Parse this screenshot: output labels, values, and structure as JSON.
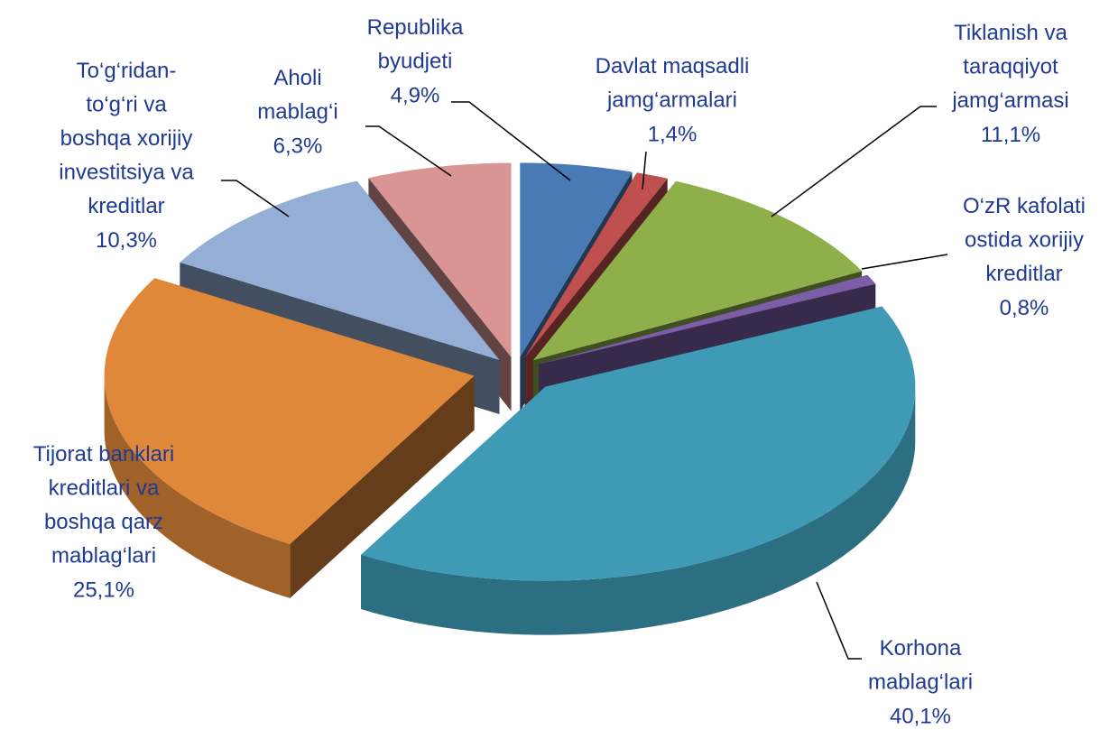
{
  "chart_data": {
    "type": "pie",
    "categories": [
      "Republika\nbyudjeti",
      "Davlat maqsadli\njamg‘armalari",
      "Tiklanish va\ntaraqqiyot\njamg‘armasi",
      "O‘zR kafolati\nostida xorijiy\nkreditlar",
      "Korhona\nmablag‘lari",
      "Tijorat banklari\nkreditlari va\nboshqa qarz\nmablag‘lari",
      "To‘g‘ridan-\nto‘g‘ri va\nboshqa xorijiy\ninvestitsiya va\nkreditlar",
      "Aholi\nmablag‘i"
    ],
    "values": [
      4.9,
      1.4,
      11.1,
      0.8,
      40.1,
      25.1,
      10.3,
      6.3
    ],
    "value_labels": [
      "4,9%",
      "1,4%",
      "11,1%",
      "0,8%",
      "40,1%",
      "25,1%",
      "10,3%",
      "6,3%"
    ],
    "colors": [
      "#4a7ab5",
      "#c0504d",
      "#8faf4a",
      "#7b5ea7",
      "#3f9ab5",
      "#e0883a",
      "#95aed6",
      "#d99594"
    ]
  }
}
